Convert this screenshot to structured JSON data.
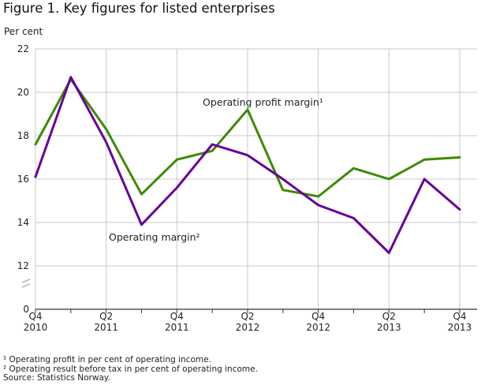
{
  "title": "Figure 1. Key figures for listed enterprises",
  "footnotes": [
    "¹ Operating profit in per cent of operating income.",
    "² Operating result before tax in per cent of operating income.",
    "Source: Statistics Norway."
  ],
  "colors": {
    "operating_profit_margin": "#3e8a00",
    "operating_margin": "#660099",
    "grid": "#c8c8c8",
    "axis": "#333333"
  },
  "chart_data": {
    "type": "line",
    "ylabel": "Per cent",
    "xlabel": "",
    "ylim": [
      0,
      22
    ],
    "y_ticks": [
      0,
      12,
      14,
      16,
      18,
      20,
      22
    ],
    "axis_break": true,
    "grid": true,
    "x_tick_labels": [
      {
        "index": 0,
        "line1": "Q4",
        "line2": "2010"
      },
      {
        "index": 2,
        "line1": "Q2",
        "line2": "2011"
      },
      {
        "index": 4,
        "line1": "Q4",
        "line2": "2011"
      },
      {
        "index": 6,
        "line1": "Q2",
        "line2": "2012"
      },
      {
        "index": 8,
        "line1": "Q4",
        "line2": "2012"
      },
      {
        "index": 10,
        "line1": "Q2",
        "line2": "2013"
      },
      {
        "index": 12,
        "line1": "Q4",
        "line2": "2013"
      }
    ],
    "categories": [
      "Q4 2010",
      "Q1 2011",
      "Q2 2011",
      "Q3 2011",
      "Q4 2011",
      "Q1 2012",
      "Q2 2012",
      "Q3 2012",
      "Q4 2012",
      "Q1 2013",
      "Q2 2013",
      "Q3 2013",
      "Q4 2013"
    ],
    "series": [
      {
        "name": "Operating profit margin¹",
        "color": "#3e8a00",
        "values": [
          17.6,
          20.6,
          18.3,
          15.3,
          16.9,
          17.3,
          19.2,
          15.5,
          15.2,
          16.5,
          16.0,
          16.9,
          17.0
        ]
      },
      {
        "name": "Operating margin²",
        "color": "#660099",
        "values": [
          16.1,
          20.7,
          17.7,
          13.9,
          15.6,
          17.6,
          17.1,
          16.0,
          14.8,
          14.2,
          12.6,
          16.0,
          14.6
        ]
      }
    ],
    "annotations": [
      "Operating profit margin¹",
      "Operating margin²"
    ]
  }
}
